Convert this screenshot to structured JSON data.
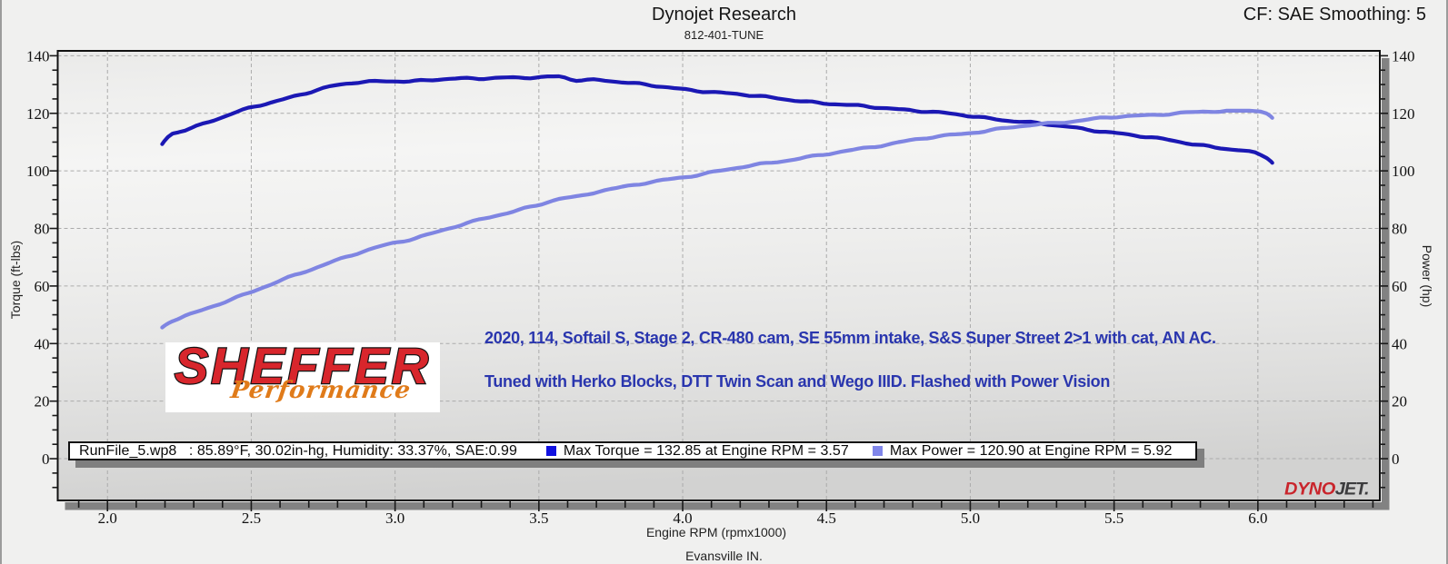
{
  "header": {
    "title": "Dynojet Research",
    "subtitle": "812-401-TUNE",
    "smoothing": "CF: SAE Smoothing: 5"
  },
  "footer": {
    "xlabel": "Engine RPM (rpmx1000)",
    "location": "Evansville IN."
  },
  "annotation": {
    "line1": "2020, 114, Softail S, Stage 2, CR-480 cam, SE 55mm intake, S&S Super Street 2>1 with cat, AN AC.",
    "line2": "Tuned with Herko Blocks, DTT Twin Scan and Wego IIID. Flashed with Power Vision",
    "color": "#2a36ae"
  },
  "logos": {
    "sheffer": {
      "line1": "SHEFFER",
      "line2": "Performance",
      "red": "#d8262c",
      "orange": "#e07b1a"
    },
    "dynojet": {
      "part1": "DYNO",
      "part2": "JET.",
      "red": "#c9252c",
      "dark": "#3c3c3e"
    }
  },
  "legend": {
    "runfile": "RunFile_5.wp8   : 85.89°F, 30.02in-hg, Humidity: 33.37%, SAE:0.99",
    "items": [
      {
        "name": "torque",
        "swatch_color": "#1111e0",
        "label": "Max Torque = 132.85 at Engine RPM = 3.57"
      },
      {
        "name": "power",
        "swatch_color": "#8086ea",
        "label": "Max Power = 120.90 at Engine RPM = 5.92"
      }
    ]
  },
  "chart_data": {
    "type": "line",
    "title": "Dynojet Research",
    "subtitle": "812-401-TUNE",
    "xlabel": "Engine RPM (rpmx1000)",
    "ylabel_left": "Torque (ft-lbs)",
    "ylabel_right": "Power (hp)",
    "xlim": [
      1.827,
      6.424
    ],
    "ylim": [
      -14.5,
      141.7
    ],
    "x_major_ticks": [
      2.0,
      2.5,
      3.0,
      3.5,
      4.0,
      4.5,
      5.0,
      5.5,
      6.0
    ],
    "x_tick_labels": [
      "2.0",
      "2.5",
      "3.0",
      "3.5",
      "4.0",
      "4.5",
      "5.0",
      "5.5",
      "6.0"
    ],
    "x_minor_step": 0.1,
    "y_major_ticks": [
      0,
      20,
      40,
      60,
      80,
      100,
      120,
      140
    ],
    "y_minor_step": 5,
    "grid": "dashed-on-major-ticks",
    "legend_position": "bottom-inside",
    "max_torque": {
      "value": 132.85,
      "rpm": 3.57
    },
    "max_power": {
      "value": 120.9,
      "rpm": 5.92
    },
    "x": [
      2.19,
      2.198,
      2.205,
      2.21,
      2.212,
      2.225,
      2.23,
      2.238,
      2.245,
      2.25,
      2.27,
      2.29,
      2.31,
      2.33,
      2.35,
      2.37,
      2.39,
      2.41,
      2.43,
      2.45,
      2.47,
      2.49,
      2.51,
      2.53,
      2.55,
      2.57,
      2.59,
      2.61,
      2.63,
      2.65,
      2.67,
      2.69,
      2.71,
      2.73,
      2.75,
      2.77,
      2.79,
      2.81,
      2.83,
      2.85,
      2.87,
      2.89,
      2.91,
      2.93,
      2.95,
      2.97,
      2.99,
      3.01,
      3.03,
      3.05,
      3.07,
      3.09,
      3.11,
      3.13,
      3.15,
      3.17,
      3.19,
      3.21,
      3.23,
      3.25,
      3.27,
      3.29,
      3.31,
      3.33,
      3.35,
      3.37,
      3.39,
      3.41,
      3.43,
      3.45,
      3.47,
      3.49,
      3.51,
      3.53,
      3.55,
      3.57,
      3.59,
      3.61,
      3.63,
      3.65,
      3.67,
      3.69,
      3.71,
      3.73,
      3.75,
      3.77,
      3.79,
      3.81,
      3.83,
      3.85,
      3.87,
      3.89,
      3.91,
      3.93,
      3.95,
      3.97,
      3.99,
      4.01,
      4.03,
      4.05,
      4.07,
      4.09,
      4.11,
      4.13,
      4.15,
      4.17,
      4.19,
      4.21,
      4.23,
      4.25,
      4.27,
      4.29,
      4.31,
      4.33,
      4.35,
      4.37,
      4.39,
      4.41,
      4.43,
      4.45,
      4.47,
      4.49,
      4.51,
      4.53,
      4.55,
      4.57,
      4.59,
      4.61,
      4.63,
      4.65,
      4.67,
      4.69,
      4.71,
      4.73,
      4.75,
      4.77,
      4.79,
      4.81,
      4.83,
      4.85,
      4.87,
      4.89,
      4.91,
      4.93,
      4.95,
      4.97,
      4.99,
      5.01,
      5.03,
      5.05,
      5.07,
      5.09,
      5.11,
      5.13,
      5.15,
      5.17,
      5.19,
      5.21,
      5.23,
      5.25,
      5.27,
      5.29,
      5.31,
      5.33,
      5.35,
      5.37,
      5.39,
      5.41,
      5.43,
      5.45,
      5.47,
      5.49,
      5.51,
      5.53,
      5.55,
      5.57,
      5.59,
      5.61,
      5.63,
      5.65,
      5.67,
      5.69,
      5.71,
      5.73,
      5.75,
      5.77,
      5.79,
      5.81,
      5.83,
      5.85,
      5.87,
      5.89,
      5.91,
      5.93,
      5.95,
      5.97,
      5.99,
      6.01,
      6.03,
      6.035,
      6.045,
      6.05
    ],
    "series": [
      {
        "name": "Torque",
        "axis": "left",
        "units": "ft-lbs",
        "color": "#1b18b4",
        "values": [
          109.3,
          110.4,
          111.2,
          111.71,
          111.91,
          112.87,
          113.04,
          113.22,
          113.36,
          113.48,
          114.01,
          114.85,
          115.76,
          116.43,
          116.9,
          117.46,
          118.22,
          118.98,
          119.7,
          120.49,
          121.34,
          121.99,
          122.31,
          122.59,
          123.11,
          123.77,
          124.35,
          124.86,
          125.47,
          126.07,
          126.47,
          126.77,
          127.3,
          128.11,
          128.86,
          129.35,
          129.7,
          130.03,
          130.27,
          130.36,
          130.52,
          130.88,
          131.23,
          131.3,
          131.15,
          131.06,
          131.07,
          131.03,
          130.94,
          131.07,
          131.41,
          131.61,
          131.52,
          131.44,
          131.59,
          131.83,
          131.97,
          132.08,
          132.27,
          132.36,
          132.18,
          131.9,
          131.88,
          132.13,
          132.35,
          132.42,
          132.48,
          132.55,
          132.46,
          132.23,
          132.15,
          132.38,
          132.68,
          132.84,
          132.84,
          132.85,
          132.44,
          131.7,
          131.25,
          131.4,
          131.72,
          131.84,
          131.62,
          131.31,
          131.1,
          130.91,
          130.68,
          130.57,
          130.6,
          130.5,
          130.09,
          129.58,
          129.28,
          129.17,
          129.01,
          128.76,
          128.59,
          128.44,
          128.1,
          127.63,
          127.34,
          127.36,
          127.43,
          127.31,
          127.1,
          126.94,
          126.74,
          126.38,
          126.06,
          126.01,
          126.08,
          125.94,
          125.55,
          125.16,
          124.89,
          124.6,
          124.28,
          124.14,
          124.18,
          124.12,
          123.77,
          123.35,
          123.15,
          123.1,
          123.01,
          122.92,
          122.93,
          122.92,
          122.64,
          122.17,
          121.86,
          121.81,
          121.79,
          121.64,
          121.48,
          121.39,
          121.18,
          120.79,
          120.47,
          120.45,
          120.56,
          120.49,
          120.23,
          119.96,
          119.72,
          119.36,
          118.95,
          118.76,
          118.78,
          118.67,
          118.28,
          117.83,
          117.55,
          117.37,
          117.15,
          117.01,
          117.07,
          117.09,
          116.81,
          116.33,
          115.97,
          115.83,
          115.68,
          115.44,
          115.25,
          115.11,
          114.78,
          114.22,
          113.75,
          113.59,
          113.58,
          113.43,
          113.17,
          112.95,
          112.71,
          112.29,
          111.85,
          111.66,
          111.69,
          111.58,
          111.21,
          110.76,
          110.39,
          109.98,
          109.5,
          109.17,
          109.08,
          109.0,
          108.65,
          108.14,
          107.78,
          107.59,
          107.38,
          107.17,
          107.05,
          106.9,
          106.44,
          105.55,
          104.5,
          104.16,
          103.32,
          102.8
        ]
      },
      {
        "name": "Power",
        "axis": "right",
        "units": "hp",
        "color": "#7f85e2",
        "values": [
          45.58,
          46.18,
          46.64,
          46.94,
          47.06,
          47.71,
          47.9,
          48.2,
          48.49,
          48.72,
          49.71,
          50.48,
          51.07,
          51.71,
          52.4,
          53.03,
          53.61,
          54.36,
          55.33,
          56.29,
          57.01,
          57.57,
          58.21,
          59.0,
          59.78,
          60.52,
          61.35,
          62.33,
          63.24,
          63.87,
          64.34,
          64.91,
          65.68,
          66.49,
          67.24,
          68.01,
          68.86,
          69.62,
          70.16,
          70.58,
          71.15,
          71.94,
          72.73,
          73.36,
          73.9,
          74.46,
          74.95,
          75.24,
          75.43,
          75.83,
          76.55,
          77.32,
          77.91,
          78.4,
          78.95,
          79.54,
          80.04,
          80.48,
          81.09,
          81.89,
          82.64,
          83.12,
          83.44,
          83.82,
          84.32,
          84.79,
          85.23,
          85.79,
          86.52,
          87.19,
          87.6,
          87.88,
          88.32,
          88.99,
          89.69,
          90.27,
          90.62,
          90.87,
          91.21,
          91.54,
          91.77,
          92.17,
          92.76,
          93.32,
          93.72,
          94.07,
          94.51,
          94.91,
          95.11,
          95.23,
          95.52,
          96.05,
          96.58,
          96.91,
          97.12,
          97.38,
          97.64,
          97.8,
          97.94,
          98.3,
          98.91,
          99.51,
          99.87,
          100.09,
          100.37,
          100.72,
          101.0,
          101.25,
          101.63,
          102.17,
          102.62,
          102.8,
          102.83,
          102.98,
          103.29,
          103.62,
          103.93,
          104.33,
          104.86,
          105.3,
          105.47,
          105.53,
          105.76,
          106.2,
          106.64,
          106.98,
          107.32,
          107.73,
          108.06,
          108.18,
          108.24,
          108.51,
          109.04,
          109.59,
          109.99,
          110.32,
          110.7,
          111.03,
          111.17,
          111.26,
          111.52,
          112.0,
          112.43,
          112.63,
          112.7,
          112.84,
          113.03,
          113.17,
          113.3,
          113.63,
          114.17,
          114.65,
          114.88,
          114.96,
          115.13,
          115.41,
          115.63,
          115.79,
          116.05,
          116.43,
          116.71,
          116.72,
          116.63,
          116.71,
          116.99,
          117.31,
          117.56,
          117.87,
          118.26,
          118.55,
          118.58,
          118.49,
          118.57,
          118.85,
          119.1,
          119.21,
          119.29,
          119.43,
          119.53,
          119.46,
          119.38,
          119.52,
          119.91,
          120.26,
          120.4,
          120.43,
          120.51,
          120.58,
          120.53,
          120.45,
          120.57,
          120.89,
          120.9,
          120.9,
          120.9,
          120.89,
          120.78,
          120.58,
          119.96,
          119.68,
          118.92,
          118.42
        ]
      }
    ]
  }
}
